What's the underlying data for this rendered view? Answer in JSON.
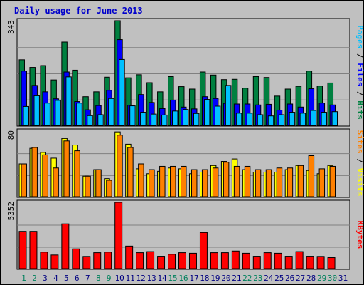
{
  "chart_data": {
    "type": "bar",
    "title": "Daily usage for June 2013",
    "days": [
      "1",
      "2",
      "3",
      "4",
      "5",
      "6",
      "7",
      "8",
      "9",
      "10",
      "11",
      "12",
      "13",
      "14",
      "15",
      "16",
      "17",
      "18",
      "19",
      "20",
      "21",
      "22",
      "23",
      "24",
      "25",
      "26",
      "27",
      "28",
      "29",
      "30",
      "31"
    ],
    "weekend_days": [
      "1",
      "2",
      "8",
      "9",
      "15",
      "16",
      "22",
      "23",
      "29",
      "30"
    ],
    "panels": [
      {
        "name": "requests",
        "max_label": "343",
        "max": 343,
        "right_label_parts": [
          {
            "text": "Pages",
            "color": "#00c0ff"
          },
          {
            "text": " / ",
            "color": "#000000"
          },
          {
            "text": "Files",
            "color": "#0000ff"
          },
          {
            "text": " / ",
            "color": "#000000"
          },
          {
            "text": "Hits",
            "color": "#008040"
          }
        ],
        "series": [
          {
            "name": "Hits",
            "color": "#008040",
            "values": [
              215,
              190,
              196,
              149,
              273,
              181,
              94,
              110,
              158,
              343,
              156,
              166,
              140,
              110,
              160,
              127,
              119,
              175,
              165,
              150,
              151,
              122,
              160,
              157,
              96,
              119,
              128,
              178,
              129,
              139,
              0
            ]
          },
          {
            "name": "Files",
            "color": "#0000ff",
            "values": [
              178,
              131,
              110,
              87,
              175,
              78,
              51,
              65,
              115,
              281,
              66,
              101,
              75,
              55,
              83,
              60,
              54,
              94,
              88,
              72,
              70,
              70,
              67,
              69,
              50,
              70,
              60,
              120,
              73,
              67,
              0
            ]
          },
          {
            "name": "Pages",
            "color": "#00c0ff",
            "values": [
              62,
              97,
              73,
              82,
              159,
              73,
              32,
              35,
              88,
              216,
              64,
              43,
              37,
              34,
              47,
              52,
              39,
              85,
              63,
              131,
              40,
              40,
              35,
              31,
              35,
              43,
              40,
              49,
              43,
              45,
              0
            ]
          }
        ]
      },
      {
        "name": "visitors",
        "max_label": "80",
        "max": 80,
        "right_label_parts": [
          {
            "text": "Sites",
            "color": "#ff8000"
          },
          {
            "text": " / ",
            "color": "#000000"
          },
          {
            "text": "Visits",
            "color": "#ffff00"
          }
        ],
        "series": [
          {
            "name": "Visits",
            "color": "#ffff00",
            "values": [
              40,
              59,
              54,
              47,
              71,
              63,
              25,
              33,
              22,
              79,
              64,
              34,
              28,
              31,
              35,
              34,
              28,
              30,
              38,
              43,
              46,
              33,
              30,
              30,
              30,
              33,
              38,
              32,
              28,
              38,
              0
            ]
          },
          {
            "name": "Sites",
            "color": "#ff8000",
            "values": [
              40,
              60,
              51,
              35,
              68,
              56,
              25,
              33,
              20,
              75,
              60,
              40,
              33,
              37,
              37,
              37,
              33,
              33,
              35,
              42,
              37,
              37,
              33,
              33,
              35,
              35,
              38,
              50,
              34,
              37,
              0
            ]
          }
        ]
      },
      {
        "name": "kbytes",
        "max_label": "5352",
        "max": 5352,
        "right_label_parts": [
          {
            "text": "KBytes",
            "color": "#ff0000"
          }
        ],
        "series": [
          {
            "name": "KBytes",
            "color": "#ff0000",
            "values": [
              3010,
              3010,
              1336,
              1103,
              3614,
              1597,
              990,
              1289,
              1336,
              5352,
              1821,
              1289,
              1376,
              1004,
              1162,
              1289,
              1243,
              2915,
              1289,
              1289,
              1423,
              1243,
              1003,
              1289,
              1243,
              1003,
              1376,
              1003,
              990,
              890,
              0
            ]
          }
        ]
      }
    ],
    "grid": true
  },
  "colors": {
    "background": "#c0c0c0",
    "weekday_label": "#000080",
    "weekend_label": "#00805c"
  }
}
